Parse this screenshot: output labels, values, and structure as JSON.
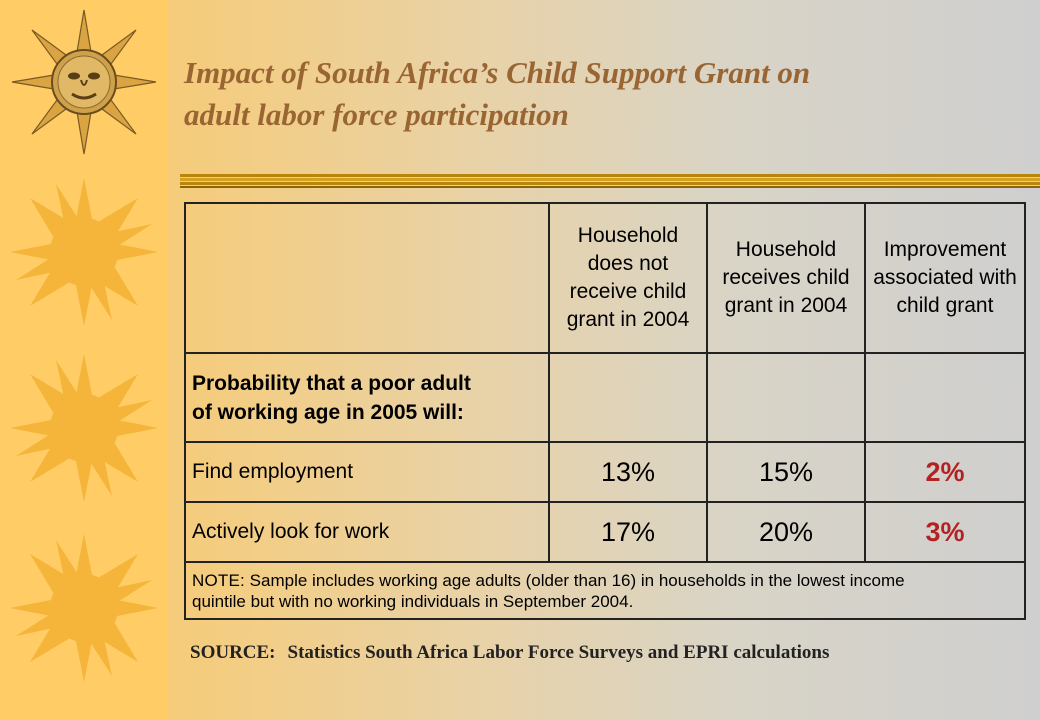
{
  "slide": {
    "title_line1": "Impact of South Africa’s Child Support Grant on",
    "title_line2": "adult labor force participation"
  },
  "colors": {
    "sidebar": "#ffcc66",
    "title": "#996633",
    "sun_gold": "#f4b53a",
    "improvement_value": "#b22222"
  },
  "icons": [
    "sun-face-icon",
    "sun-icon",
    "sun-icon",
    "sun-icon"
  ],
  "table": {
    "headers": [
      "",
      "Household does not receive child grant in 2004",
      "Household receives child grant in 2004",
      "Improvement associated with child grant"
    ],
    "question_line1": "Probability that a poor adult",
    "question_line2": "of working age in 2005 will:",
    "rows": [
      {
        "label": "Find employment",
        "no_grant": "13%",
        "grant": "15%",
        "improvement": "2%"
      },
      {
        "label": "Actively look for work",
        "no_grant": "17%",
        "grant": "20%",
        "improvement": "3%"
      }
    ],
    "note_label": "NOTE:",
    "note_text_line1": " Sample includes working age adults (older than 16) in households in the lowest income",
    "note_text_line2": "quintile but with no working individuals in September 2004."
  },
  "source": {
    "label": "SOURCE:",
    "text": "Statistics South Africa Labor Force Surveys and EPRI  calculations"
  }
}
